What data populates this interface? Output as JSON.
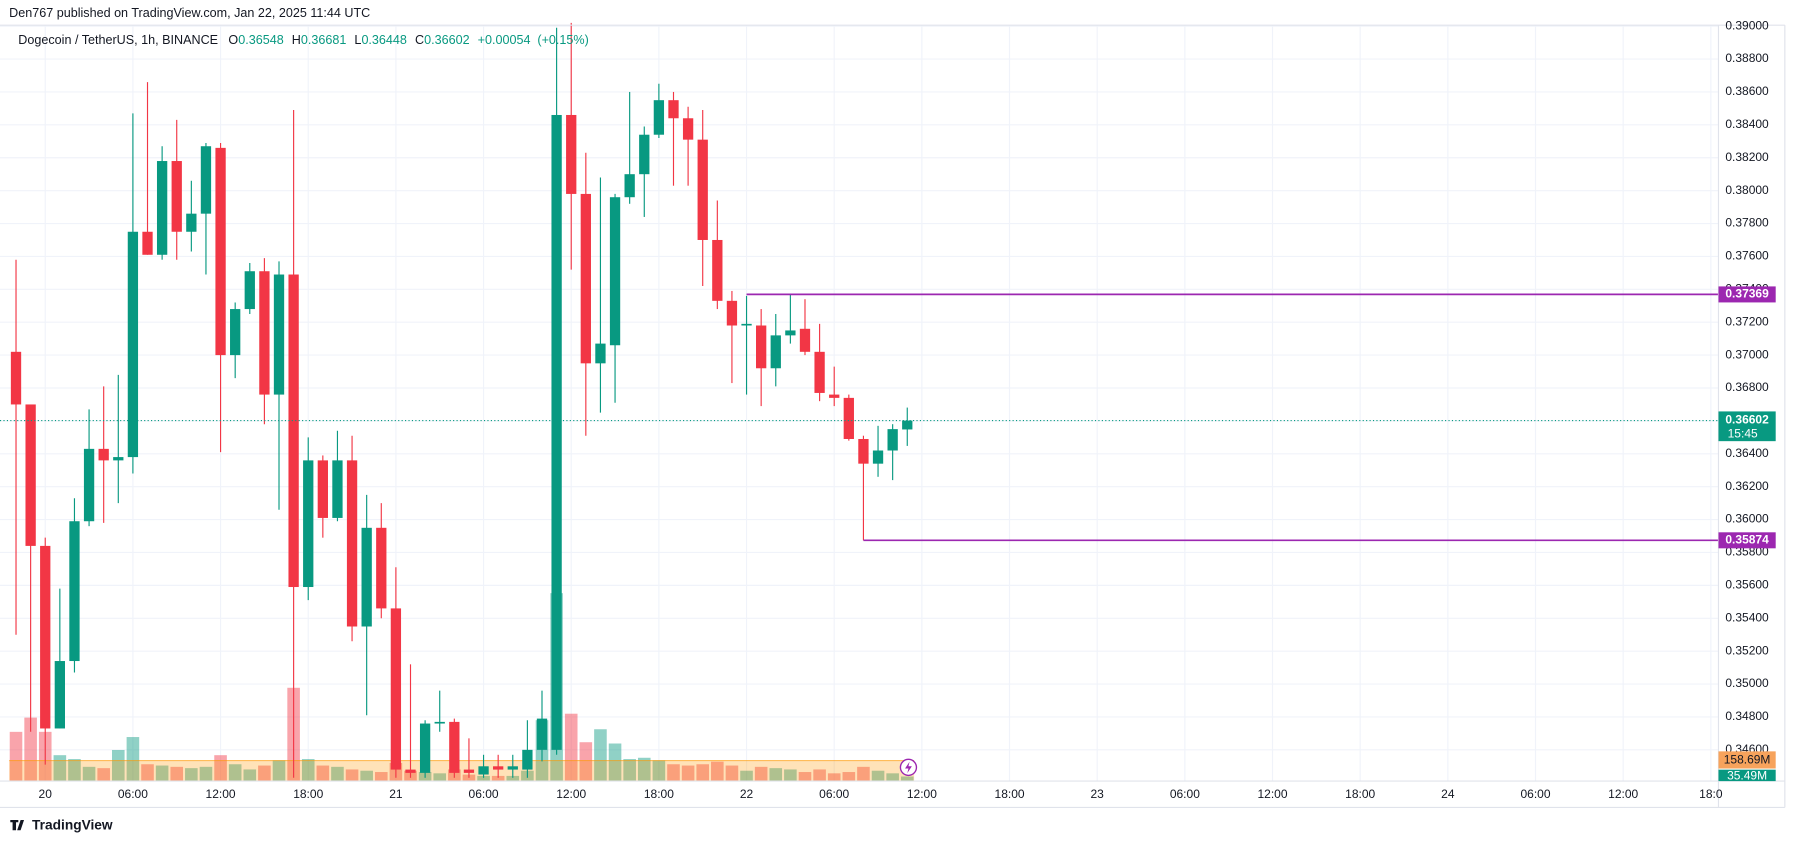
{
  "chart_data": {
    "type": "candlestick",
    "header": "Den767 published on TradingView.com, Jan 22, 2025 11:44 UTC",
    "symbol": "Dogecoin / TetherUS, 1h, BINANCE",
    "legend_keys": [
      "O",
      "H",
      "L",
      "C"
    ],
    "change": {
      "value": 0.00054,
      "label": "+0.00054"
    },
    "change_pct": {
      "value": 0.15,
      "label": "(+0.15%)"
    },
    "categories": [
      null,
      null,
      "20",
      null,
      null,
      null,
      null,
      null,
      "06:00",
      null,
      null,
      null,
      null,
      null,
      "12:00",
      null,
      null,
      null,
      null,
      null,
      "18:00",
      null,
      null,
      null,
      null,
      null,
      "21",
      null,
      null,
      null,
      null,
      null,
      "06:00",
      null,
      null,
      null,
      null,
      null,
      "12:00",
      null,
      null,
      null,
      null,
      null,
      "18:00",
      null,
      null,
      null,
      null,
      null,
      "22",
      null,
      null,
      null,
      null,
      null,
      "06:00",
      null,
      null,
      null,
      null,
      null,
      "12:00",
      null,
      null,
      null,
      null,
      null,
      "18:00",
      null,
      null,
      null,
      null,
      null,
      "23",
      null,
      null,
      null,
      null,
      null,
      "06:00",
      null,
      null,
      null,
      null,
      null,
      "12:00",
      null,
      null,
      null,
      null,
      null,
      "18:00",
      null,
      null,
      null,
      null,
      null,
      "24",
      null,
      null,
      null,
      null,
      null,
      "06:00",
      null,
      null,
      null,
      null,
      null,
      "12:00",
      null,
      null,
      null,
      null,
      null,
      "18:0"
    ],
    "open": [
      0.3702,
      0.367,
      0.3584,
      0.3473,
      0.3514,
      0.3599,
      0.3643,
      0.3636,
      0.3638,
      0.3775,
      0.3761,
      0.3818,
      0.3775,
      0.3786,
      0.3826,
      0.37,
      0.3728,
      0.3751,
      0.3676,
      0.3749,
      0.3559,
      0.3636,
      0.3601,
      0.3636,
      0.3535,
      0.3595,
      0.3546,
      0.3448,
      0.3446,
      0.3476,
      0.3477,
      0.3448,
      0.3445,
      0.345,
      0.3448,
      0.3448,
      0.346,
      0.346,
      0.3846,
      0.3798,
      0.3695,
      0.3706,
      0.3796,
      0.381,
      0.3834,
      0.3855,
      0.3844,
      0.3831,
      0.377,
      0.3733,
      0.3718,
      0.3718,
      0.3692,
      0.3712,
      0.3716,
      0.3702,
      0.3676,
      0.3674,
      0.3649,
      0.3634,
      0.3642,
      0.36548,
      null,
      null,
      null,
      null,
      null,
      null,
      null,
      null,
      null,
      null,
      null,
      null,
      null,
      null,
      null,
      null,
      null,
      null,
      null,
      null,
      null,
      null,
      null,
      null,
      null,
      null,
      null,
      null,
      null,
      null,
      null,
      null,
      null,
      null,
      null,
      null,
      null,
      null,
      null,
      null,
      null,
      null,
      null,
      null,
      null,
      null,
      null,
      null,
      null,
      null,
      null,
      null,
      null,
      null,
      null
    ],
    "high": [
      0.3758,
      0.367,
      0.3589,
      0.3558,
      0.3613,
      0.3667,
      0.3681,
      0.3688,
      0.3847,
      0.3866,
      0.3827,
      0.3843,
      0.3806,
      0.3829,
      0.3829,
      0.3732,
      0.3756,
      0.3759,
      0.3757,
      0.3849,
      0.365,
      0.3639,
      0.3654,
      0.3651,
      0.3615,
      0.361,
      0.3571,
      0.3512,
      0.3478,
      0.3496,
      0.3479,
      0.3467,
      0.3457,
      0.3457,
      0.3457,
      0.3478,
      0.3496,
      0.3899,
      0.3902,
      0.3823,
      0.3808,
      0.3798,
      0.386,
      0.3839,
      0.3865,
      0.386,
      0.3851,
      0.3849,
      0.3794,
      0.3739,
      0.3736,
      0.3728,
      0.3725,
      0.3737,
      0.3734,
      0.3719,
      0.3693,
      0.3676,
      0.3651,
      0.3657,
      0.3658,
      0.36681,
      null,
      null,
      null,
      null,
      null,
      null,
      null,
      null,
      null,
      null,
      null,
      null,
      null,
      null,
      null,
      null,
      null,
      null,
      null,
      null,
      null,
      null,
      null,
      null,
      null,
      null,
      null,
      null,
      null,
      null,
      null,
      null,
      null,
      null,
      null,
      null,
      null,
      null,
      null,
      null,
      null,
      null,
      null,
      null,
      null,
      null,
      null,
      null,
      null,
      null,
      null,
      null,
      null,
      null,
      null
    ],
    "low": [
      0.353,
      0.3471,
      0.3451,
      0.3473,
      0.3507,
      0.3596,
      0.3598,
      0.361,
      0.3628,
      0.3761,
      0.3758,
      0.3758,
      0.3763,
      0.3749,
      0.3641,
      0.3686,
      0.3725,
      0.3658,
      0.3606,
      0.3443,
      0.3551,
      0.3589,
      0.3599,
      0.3526,
      0.3481,
      0.354,
      0.3443,
      0.3443,
      0.3443,
      0.3471,
      0.3443,
      0.3443,
      0.3443,
      0.3443,
      0.3443,
      0.3443,
      0.3453,
      0.3457,
      0.3752,
      0.3651,
      0.3665,
      0.3671,
      0.3792,
      0.3784,
      0.3832,
      0.3803,
      0.3803,
      0.3742,
      0.3728,
      0.3683,
      0.3676,
      0.3669,
      0.3681,
      0.3707,
      0.37,
      0.3672,
      0.3669,
      0.3648,
      0.35874,
      0.3626,
      0.3624,
      0.36448,
      null,
      null,
      null,
      null,
      null,
      null,
      null,
      null,
      null,
      null,
      null,
      null,
      null,
      null,
      null,
      null,
      null,
      null,
      null,
      null,
      null,
      null,
      null,
      null,
      null,
      null,
      null,
      null,
      null,
      null,
      null,
      null,
      null,
      null,
      null,
      null,
      null,
      null,
      null,
      null,
      null,
      null,
      null,
      null,
      null,
      null,
      null,
      null,
      null,
      null,
      null,
      null,
      null,
      null,
      null
    ],
    "close": [
      0.367,
      0.3584,
      0.3473,
      0.3514,
      0.3599,
      0.3643,
      0.3636,
      0.3638,
      0.3775,
      0.3761,
      0.3818,
      0.3775,
      0.3786,
      0.3827,
      0.37,
      0.3728,
      0.3751,
      0.3676,
      0.3749,
      0.3559,
      0.3636,
      0.3601,
      0.3636,
      0.3535,
      0.3595,
      0.3546,
      0.3448,
      0.3446,
      0.3476,
      0.3477,
      0.3446,
      0.3446,
      0.345,
      0.3448,
      0.345,
      0.346,
      0.3479,
      0.3846,
      0.3798,
      0.3695,
      0.3707,
      0.3796,
      0.381,
      0.3834,
      0.3855,
      0.3844,
      0.3831,
      0.377,
      0.3733,
      0.3718,
      0.3719,
      0.3692,
      0.3712,
      0.3715,
      0.3702,
      0.3677,
      0.3674,
      0.3649,
      0.3634,
      0.3642,
      0.3655,
      0.36602,
      null,
      null,
      null,
      null,
      null,
      null,
      null,
      null,
      null,
      null,
      null,
      null,
      null,
      null,
      null,
      null,
      null,
      null,
      null,
      null,
      null,
      null,
      null,
      null,
      null,
      null,
      null,
      null,
      null,
      null,
      null,
      null,
      null,
      null,
      null,
      null,
      null,
      null,
      null,
      null,
      null,
      null,
      null,
      null,
      null,
      null,
      null,
      null,
      null,
      null,
      null,
      null,
      null,
      null,
      null
    ],
    "volume": {
      "values": [
        380000000,
        490000000,
        380000000,
        200000000,
        170000000,
        110000000,
        100000000,
        240000000,
        340000000,
        130000000,
        120000000,
        110000000,
        100000000,
        110000000,
        200000000,
        130000000,
        90000000,
        120000000,
        160000000,
        720000000,
        170000000,
        120000000,
        110000000,
        90000000,
        80000000,
        70000000,
        140000000,
        80000000,
        70000000,
        60000000,
        90000000,
        50000000,
        40000000,
        40000000,
        40000000,
        80000000,
        470000000,
        1450000000,
        520000000,
        300000000,
        400000000,
        290000000,
        170000000,
        180000000,
        160000000,
        130000000,
        120000000,
        130000000,
        150000000,
        120000000,
        80000000,
        110000000,
        100000000,
        90000000,
        70000000,
        90000000,
        60000000,
        70000000,
        110000000,
        80000000,
        60000000,
        35490000,
        null,
        null,
        null,
        null,
        null,
        null,
        null,
        null,
        null,
        null,
        null,
        null,
        null,
        null,
        null,
        null,
        null,
        null,
        null,
        null,
        null,
        null,
        null,
        null,
        null,
        null,
        null,
        null,
        null,
        null,
        null,
        null,
        null,
        null,
        null,
        null,
        null,
        null,
        null,
        null,
        null,
        null,
        null,
        null,
        null,
        null,
        null,
        null,
        null,
        null,
        null,
        null,
        null,
        null,
        null
      ],
      "value_labels": [
        null,
        null,
        null,
        null,
        null,
        null,
        null,
        null,
        null,
        null,
        null,
        null,
        null,
        null,
        null,
        null,
        null,
        null,
        null,
        null,
        null,
        null,
        null,
        null,
        null,
        null,
        null,
        null,
        null,
        null,
        null,
        null,
        null,
        null,
        null,
        null,
        null,
        null,
        null,
        null,
        null,
        null,
        null,
        null,
        null,
        null,
        null,
        null,
        null,
        null,
        null,
        null,
        null,
        null,
        null,
        null,
        null,
        null,
        null,
        null,
        null,
        "35.49M",
        null,
        null,
        null,
        null,
        null,
        null,
        null,
        null,
        null,
        null,
        null,
        null,
        null,
        null,
        null,
        null,
        null,
        null,
        null,
        null,
        null,
        null,
        null,
        null,
        null,
        null,
        null,
        null,
        null,
        null,
        null,
        null,
        null,
        null,
        null,
        null,
        null,
        null,
        null,
        null,
        null,
        null,
        null,
        null,
        null,
        null,
        null,
        null,
        null,
        null,
        null,
        null,
        null,
        null,
        null
      ]
    },
    "volume_ma": {
      "value": 158690000,
      "label": "158.69M"
    },
    "volume_ylim": [
      0,
      5850000000
    ],
    "up_color": "#089981",
    "down_color": "#f23645",
    "ylim": [
      0.3441,
      0.3902
    ],
    "yticks": [
      {
        "value": 0.346,
        "label": "0.34600"
      },
      {
        "value": 0.348,
        "label": "0.34800"
      },
      {
        "value": 0.35,
        "label": "0.35000"
      },
      {
        "value": 0.352,
        "label": "0.35200"
      },
      {
        "value": 0.354,
        "label": "0.35400"
      },
      {
        "value": 0.356,
        "label": "0.35600"
      },
      {
        "value": 0.358,
        "label": "0.35800"
      },
      {
        "value": 0.36,
        "label": "0.36000"
      },
      {
        "value": 0.362,
        "label": "0.36200"
      },
      {
        "value": 0.364,
        "label": "0.36400"
      },
      {
        "value": 0.366,
        "label": "0.36600"
      },
      {
        "value": 0.368,
        "label": "0.36800"
      },
      {
        "value": 0.37,
        "label": "0.37000"
      },
      {
        "value": 0.372,
        "label": "0.37200"
      },
      {
        "value": 0.374,
        "label": "0.37400"
      },
      {
        "value": 0.376,
        "label": "0.37600"
      },
      {
        "value": 0.378,
        "label": "0.37800"
      },
      {
        "value": 0.38,
        "label": "0.38000"
      },
      {
        "value": 0.382,
        "label": "0.38200"
      },
      {
        "value": 0.384,
        "label": "0.38400"
      },
      {
        "value": 0.386,
        "label": "0.38600"
      },
      {
        "value": 0.388,
        "label": "0.38800"
      },
      {
        "value": 0.39,
        "label": "0.39000"
      }
    ],
    "grid": true,
    "levels": [
      {
        "value": 0.37369,
        "color": "#9c27b0"
      },
      {
        "value": 0.35874,
        "color": "#9c27b0"
      }
    ],
    "countdown": "15:45",
    "footer": "TradingView"
  }
}
